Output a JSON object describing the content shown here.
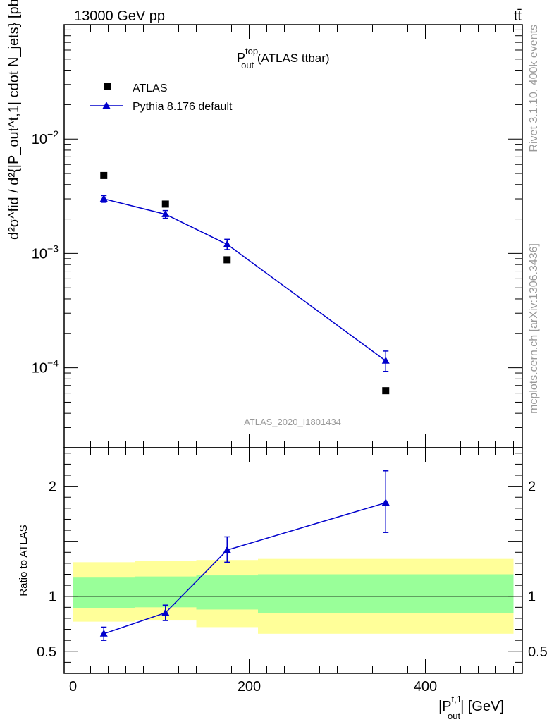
{
  "header": {
    "energy_label": "13000 GeV pp",
    "process_label": "tt̄"
  },
  "side_labels": {
    "rivet": "Rivet 3.1.10,  400k events",
    "mcplots": "mcplots.cern.ch [arXiv:1306.3436]"
  },
  "colors": {
    "data": "#000000",
    "mc": "#0000cc",
    "band_outer": "#ffff99",
    "band_inner": "#99ff99",
    "watermark": "#999999"
  },
  "chart_data": [
    {
      "type": "scatter",
      "panel": "main",
      "title": {
        "base": "P",
        "sup": "top",
        "sub": "out",
        "suffix": " (ATLAS ttbar)"
      },
      "analysis_id": "ATLAS_2020_I1801434",
      "ylabel": "d²σ^fid / d²{|P_out^t,1| cdot N_jets} [pb/GeV]",
      "yscale": "log",
      "ylim": [
        2e-05,
        0.1
      ],
      "xlim": [
        -10,
        510
      ],
      "y_ticks": [
        {
          "value": 0.01,
          "base": "10",
          "exp": "−2"
        },
        {
          "value": 0.001,
          "base": "10",
          "exp": "−3"
        },
        {
          "value": 0.0001,
          "base": "10",
          "exp": "−4"
        }
      ],
      "legend": {
        "position": "top-left",
        "entries": [
          {
            "label": "ATLAS",
            "marker": "square",
            "color": "#000000"
          },
          {
            "label": "Pythia 8.176 default",
            "marker": "triangle",
            "color": "#0000cc"
          }
        ]
      },
      "series": [
        {
          "name": "ATLAS",
          "x": [
            35,
            105,
            175,
            355
          ],
          "y": [
            0.0048,
            0.0027,
            0.00088,
            6.3e-05
          ]
        },
        {
          "name": "Pythia 8.176 default",
          "x": [
            35,
            105,
            175,
            355
          ],
          "y": [
            0.003,
            0.0022,
            0.0012,
            0.000115
          ],
          "err_low": [
            0.0002,
            0.00017,
            0.00012,
            2.2e-05
          ],
          "err_high": [
            0.0002,
            0.00017,
            0.00013,
            2.5e-05
          ]
        }
      ]
    },
    {
      "type": "scatter",
      "panel": "ratio",
      "ylabel": "Ratio to ATLAS",
      "xlabel": {
        "base": "|P",
        "sup": "t,1",
        "sub": "out",
        "suffix": "| [GeV]"
      },
      "ylim": [
        0.3,
        2.35
      ],
      "xlim": [
        -10,
        510
      ],
      "y_ticks": [
        0.5,
        1,
        2
      ],
      "y_tick_labels": [
        "0.5",
        "1",
        "2"
      ],
      "x_ticks": [
        0,
        200,
        400
      ],
      "x_tick_labels": [
        "0",
        "200",
        "400"
      ],
      "reference_line": 1,
      "bands": [
        {
          "x_low": 0,
          "x_high": 70,
          "outer": [
            0.77,
            1.31
          ],
          "inner": [
            0.89,
            1.17
          ]
        },
        {
          "x_low": 70,
          "x_high": 140,
          "outer": [
            0.78,
            1.32
          ],
          "inner": [
            0.9,
            1.18
          ]
        },
        {
          "x_low": 140,
          "x_high": 210,
          "outer": [
            0.72,
            1.33
          ],
          "inner": [
            0.88,
            1.19
          ]
        },
        {
          "x_low": 210,
          "x_high": 500,
          "outer": [
            0.66,
            1.34
          ],
          "inner": [
            0.85,
            1.2
          ]
        }
      ],
      "series": [
        {
          "name": "Pythia 8.176 default",
          "x": [
            35,
            105,
            175,
            355
          ],
          "y": [
            0.66,
            0.85,
            1.42,
            1.85
          ],
          "err_low": [
            0.06,
            0.07,
            0.11,
            0.27
          ],
          "err_high": [
            0.06,
            0.07,
            0.12,
            0.29
          ]
        }
      ]
    }
  ]
}
